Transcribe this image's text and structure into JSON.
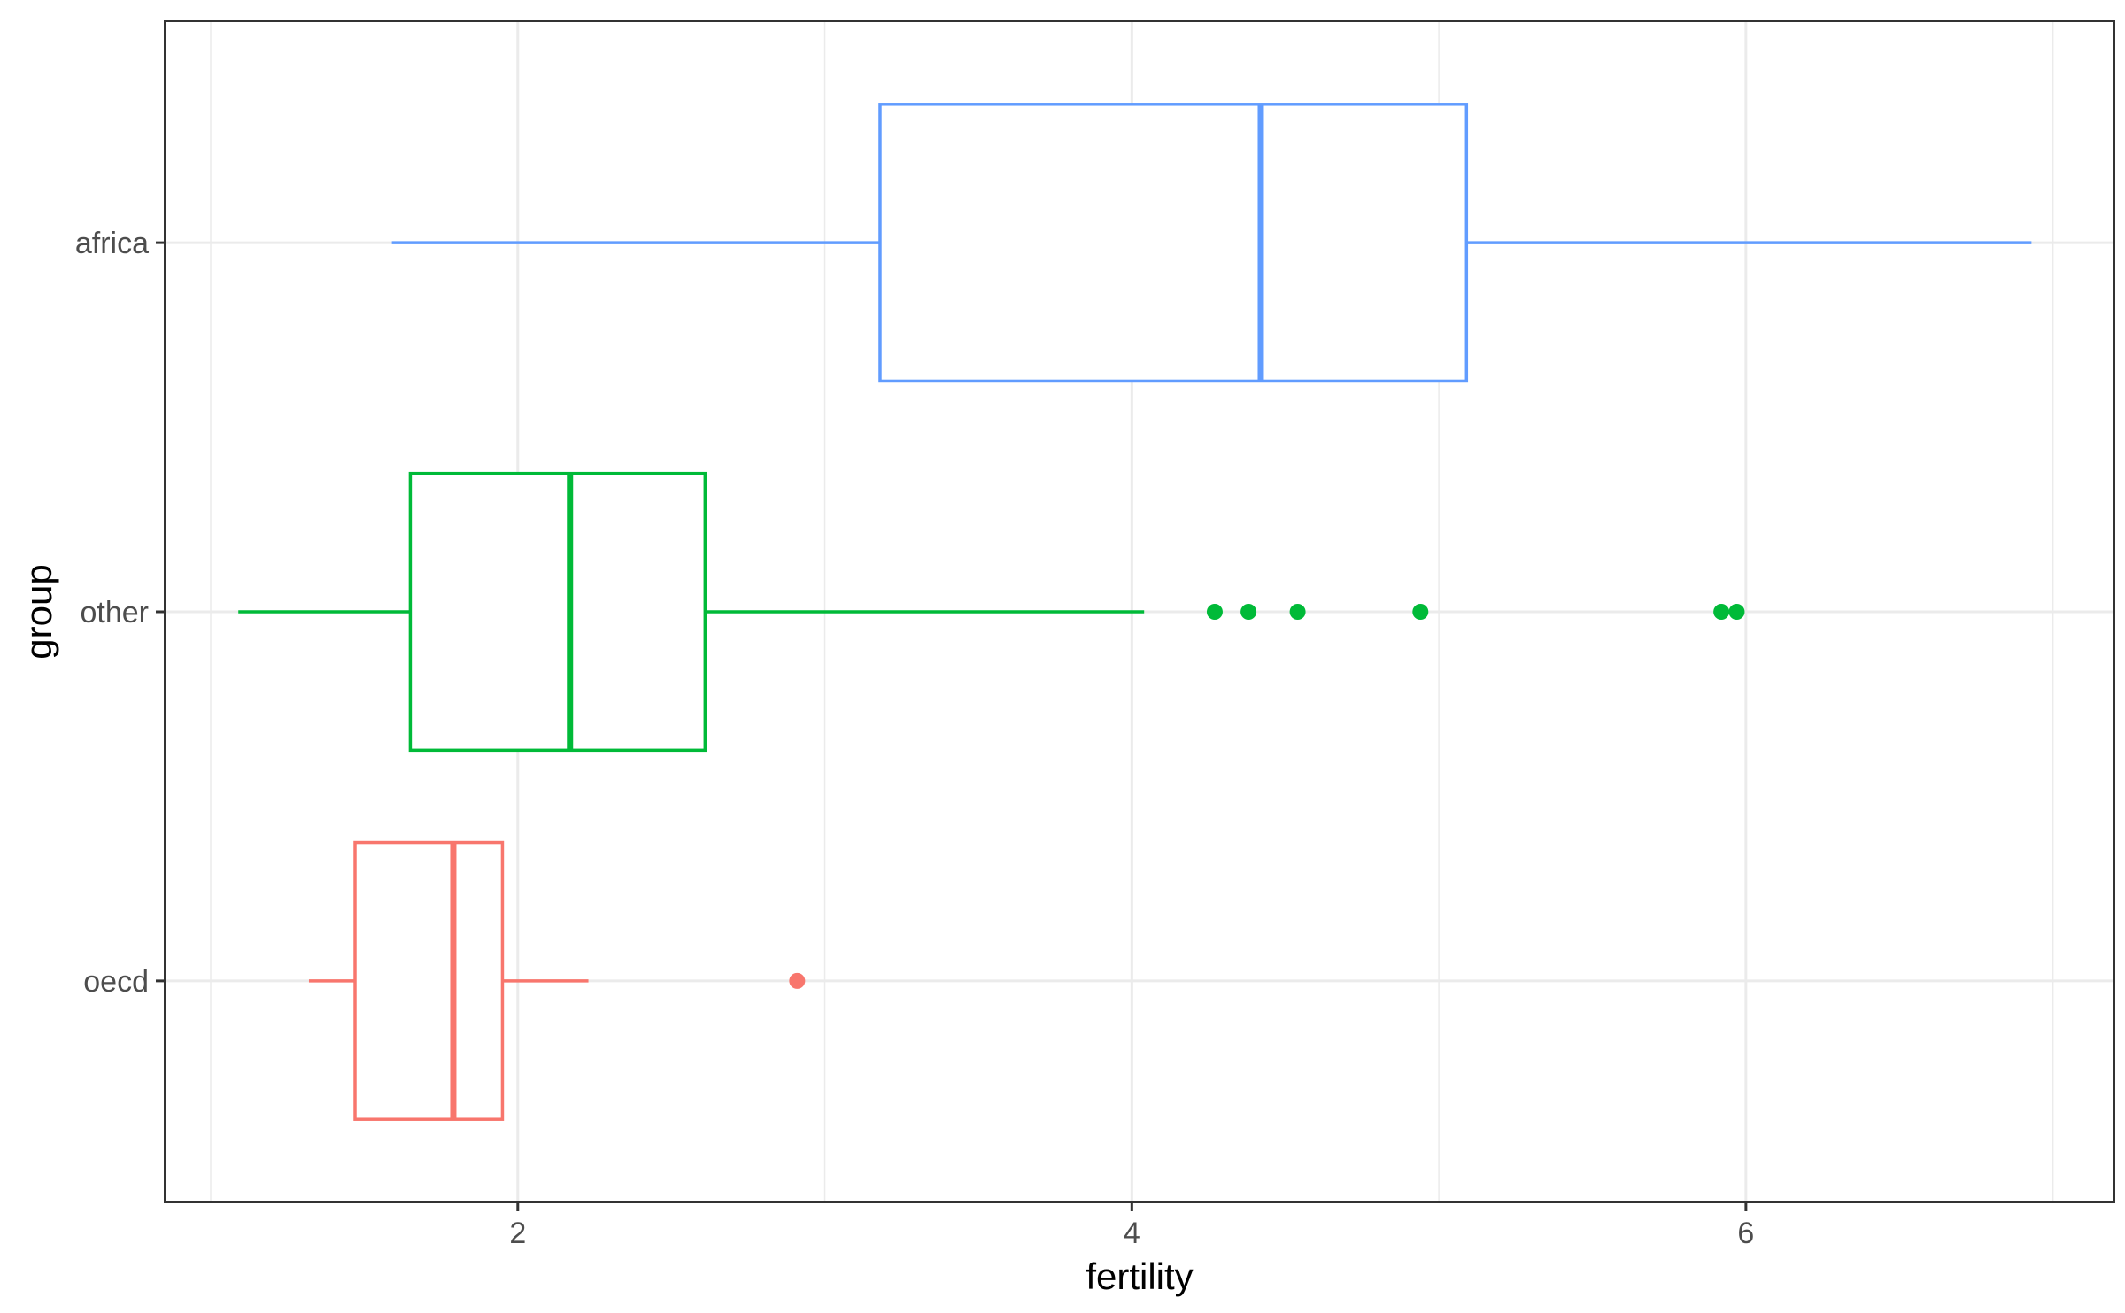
{
  "chart_data": {
    "type": "boxplot",
    "orientation": "horizontal",
    "xlabel": "fertility",
    "ylabel": "group",
    "xlim": [
      0.85,
      7.2
    ],
    "x_ticks": [
      2,
      4,
      6
    ],
    "x_minor_ticks": [
      1,
      3,
      5,
      7
    ],
    "grid": true,
    "legend": "none",
    "categories": [
      "oecd",
      "other",
      "africa"
    ],
    "series": [
      {
        "category": "oecd",
        "color": "#F8766D",
        "whisker_low": 1.32,
        "q1": 1.47,
        "median": 1.79,
        "q3": 1.95,
        "whisker_high": 2.23,
        "outliers": [
          2.91
        ]
      },
      {
        "category": "other",
        "color": "#00BA38",
        "whisker_low": 1.09,
        "q1": 1.65,
        "median": 2.17,
        "q3": 2.61,
        "whisker_high": 4.04,
        "outliers": [
          4.27,
          4.38,
          4.54,
          4.94,
          5.92,
          5.97
        ]
      },
      {
        "category": "africa",
        "color": "#619CFF",
        "whisker_low": 1.59,
        "q1": 3.18,
        "median": 4.42,
        "q3": 5.09,
        "whisker_high": 6.93,
        "outliers": []
      }
    ]
  }
}
